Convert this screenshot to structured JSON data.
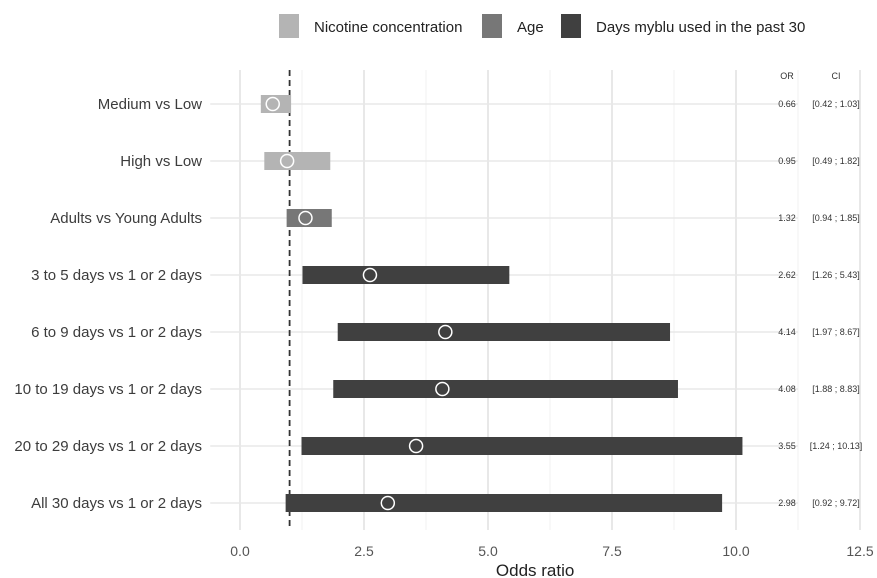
{
  "chart_data": {
    "type": "bar",
    "subtype": "forest-plot",
    "xlabel": "Odds ratio",
    "xlim": [
      -0.6,
      12.5
    ],
    "xticks": [
      "0.0",
      "2.5",
      "5.0",
      "7.5",
      "10.0",
      "12.5"
    ],
    "xtick_values": [
      0,
      2.5,
      5,
      7.5,
      10,
      12.5
    ],
    "reference_line": 1,
    "grid": true,
    "legend_position": "top",
    "legend": [
      {
        "name": "Nicotine concentration",
        "color": "#b4b4b4"
      },
      {
        "name": "Age",
        "color": "#777777"
      },
      {
        "name": "Days myblu used in the past 30",
        "color": "#404040"
      }
    ],
    "columns": {
      "or": "OR",
      "ci": "CI"
    },
    "rows": [
      {
        "label": "Medium vs Low",
        "group": "Nicotine concentration",
        "or": 0.66,
        "lo": 0.42,
        "hi": 1.03,
        "or_text": "0.66",
        "ci_text": "[0.42 ; 1.03]"
      },
      {
        "label": "High vs Low",
        "group": "Nicotine concentration",
        "or": 0.95,
        "lo": 0.49,
        "hi": 1.82,
        "or_text": "0.95",
        "ci_text": "[0.49 ; 1.82]"
      },
      {
        "label": "Adults vs Young Adults",
        "group": "Age",
        "or": 1.32,
        "lo": 0.94,
        "hi": 1.85,
        "or_text": "1.32",
        "ci_text": "[0.94 ; 1.85]"
      },
      {
        "label": "3 to 5 days vs 1 or 2 days",
        "group": "Days myblu used in the past 30",
        "or": 2.62,
        "lo": 1.26,
        "hi": 5.43,
        "or_text": "2.62",
        "ci_text": "[1.26 ; 5.43]"
      },
      {
        "label": "6 to 9 days vs 1 or 2 days",
        "group": "Days myblu used in the past 30",
        "or": 4.14,
        "lo": 1.97,
        "hi": 8.67,
        "or_text": "4.14",
        "ci_text": "[1.97 ; 8.67]"
      },
      {
        "label": "10 to 19 days vs 1 or 2 days",
        "group": "Days myblu used in the past 30",
        "or": 4.08,
        "lo": 1.88,
        "hi": 8.83,
        "or_text": "4.08",
        "ci_text": "[1.88 ; 8.83]"
      },
      {
        "label": "20 to 29 days vs 1 or 2 days",
        "group": "Days myblu used in the past 30",
        "or": 3.55,
        "lo": 1.24,
        "hi": 10.13,
        "or_text": "3.55",
        "ci_text": "[1.24 ; 10.13]"
      },
      {
        "label": "All 30 days vs 1 or 2 days",
        "group": "Days myblu used in the past 30",
        "or": 2.98,
        "lo": 0.92,
        "hi": 9.72,
        "or_text": "2.98",
        "ci_text": "[0.92 ; 9.72]"
      }
    ]
  }
}
